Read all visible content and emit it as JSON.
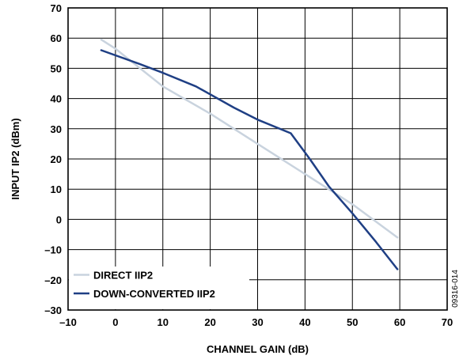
{
  "chart_data": {
    "type": "line",
    "xlabel": "CHANNEL GAIN (dB)",
    "ylabel": "INPUT IP2 (dBm)",
    "xlim": [
      -10,
      70
    ],
    "ylim": [
      -30,
      70
    ],
    "x_ticks": [
      -10,
      0,
      10,
      20,
      30,
      40,
      50,
      60,
      70
    ],
    "y_ticks": [
      -30,
      -20,
      -10,
      0,
      10,
      20,
      30,
      40,
      50,
      60,
      70
    ],
    "grid": true,
    "legend_position": "bottom-left",
    "figure_id": "09316-014",
    "series": [
      {
        "name": "DIRECT IIP2",
        "color": "#c9d3de",
        "points": [
          [
            -3,
            59.5
          ],
          [
            0,
            56.5
          ],
          [
            10,
            44
          ],
          [
            20,
            35
          ],
          [
            30,
            25
          ],
          [
            40,
            15
          ],
          [
            50,
            5
          ],
          [
            59.5,
            -6
          ]
        ]
      },
      {
        "name": "DOWN-CONVERTED IIP2",
        "color": "#1f3f84",
        "points": [
          [
            -3,
            56
          ],
          [
            5,
            51.5
          ],
          [
            10,
            48.5
          ],
          [
            17,
            44
          ],
          [
            25,
            37
          ],
          [
            30,
            33
          ],
          [
            37,
            28.5
          ],
          [
            41,
            20
          ],
          [
            45,
            11
          ],
          [
            50,
            2
          ],
          [
            55,
            -7.5
          ],
          [
            59.5,
            -16.5
          ]
        ]
      }
    ]
  }
}
